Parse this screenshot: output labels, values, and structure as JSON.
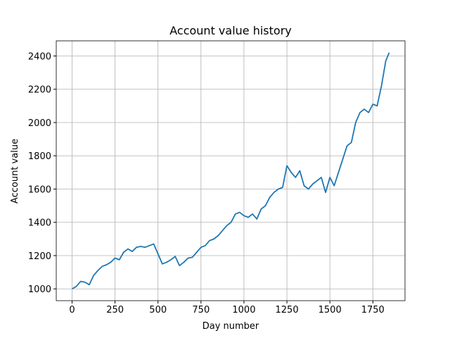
{
  "chart_data": {
    "type": "line",
    "title": "Account value history",
    "x_label": "Day number",
    "y_label": "Account value",
    "x": [
      0,
      25,
      50,
      75,
      100,
      125,
      150,
      175,
      200,
      225,
      250,
      275,
      300,
      325,
      350,
      375,
      400,
      425,
      450,
      475,
      500,
      525,
      550,
      575,
      600,
      625,
      650,
      675,
      700,
      725,
      750,
      775,
      800,
      825,
      850,
      875,
      900,
      925,
      950,
      975,
      1000,
      1025,
      1050,
      1075,
      1100,
      1125,
      1150,
      1175,
      1200,
      1225,
      1250,
      1275,
      1300,
      1325,
      1350,
      1375,
      1400,
      1425,
      1450,
      1475,
      1500,
      1525,
      1550,
      1575,
      1600,
      1625,
      1650,
      1675,
      1700,
      1725,
      1750,
      1775,
      1800,
      1825,
      1845
    ],
    "series": [
      {
        "name": "Account value",
        "color": "#1f77b4",
        "values": [
          1000,
          1015,
          1045,
          1040,
          1025,
          1080,
          1110,
          1135,
          1145,
          1160,
          1185,
          1175,
          1220,
          1240,
          1225,
          1250,
          1255,
          1250,
          1260,
          1270,
          1210,
          1150,
          1160,
          1175,
          1195,
          1140,
          1160,
          1185,
          1190,
          1220,
          1250,
          1260,
          1290,
          1300,
          1320,
          1350,
          1380,
          1400,
          1450,
          1460,
          1440,
          1430,
          1450,
          1420,
          1480,
          1500,
          1550,
          1580,
          1600,
          1610,
          1740,
          1700,
          1670,
          1710,
          1620,
          1600,
          1630,
          1650,
          1670,
          1580,
          1670,
          1620,
          1700,
          1780,
          1860,
          1880,
          2000,
          2060,
          2080,
          2060,
          2110,
          2100,
          2220,
          2370,
          2420
        ]
      }
    ],
    "xlim": [
      -92,
      1937
    ],
    "ylim": [
      929,
      2491
    ],
    "xticks": [
      0,
      250,
      500,
      750,
      1000,
      1250,
      1500,
      1750
    ],
    "yticks": [
      1000,
      1200,
      1400,
      1600,
      1800,
      2000,
      2200,
      2400
    ],
    "grid": true
  }
}
